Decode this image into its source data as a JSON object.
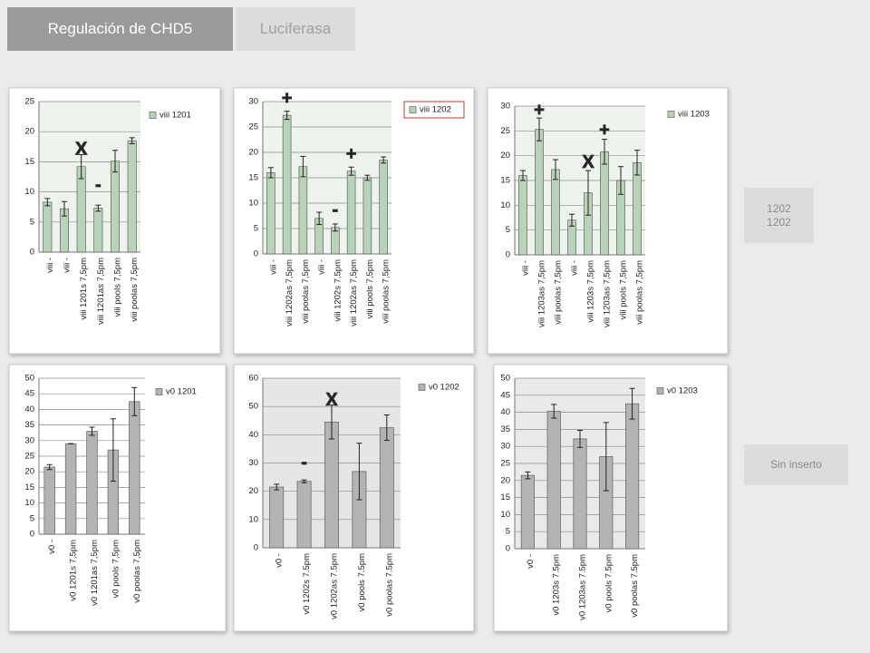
{
  "tabs": [
    "Regulación de CHD5",
    "Luciferasa"
  ],
  "side_boxes": [
    [
      "1202",
      "1202"
    ],
    [
      "Sin inserto"
    ]
  ],
  "chart_data": [
    {
      "type": "bar",
      "ylim": [
        0,
        25
      ],
      "yticks": [
        0,
        5,
        10,
        15,
        20,
        25
      ],
      "grid": true,
      "plot_bg": "#eef3ee",
      "legend_box": false,
      "categories": [
        "viii -",
        "viii -",
        "viii 1201s 7,5pm",
        "viii 1201as 7,5pm",
        "viii pools 7,5pm",
        "viii poolas 7,5pm"
      ],
      "series": [
        {
          "name": "viii 1201",
          "color": "#b9d3b9",
          "values": [
            8.3,
            7.2,
            14.2,
            7.3,
            15.1,
            18.5
          ],
          "errors": [
            0.6,
            1.2,
            2.0,
            0.5,
            1.8,
            0.5
          ]
        }
      ],
      "annotations": [
        {
          "text": "X",
          "color": "#e03010"
        },
        {
          "text": "-",
          "color": "#f2e400"
        }
      ]
    },
    {
      "type": "bar",
      "ylim": [
        0,
        30
      ],
      "yticks": [
        0,
        5,
        10,
        15,
        20,
        25,
        30
      ],
      "grid": true,
      "plot_bg": "#eef3ee",
      "legend_box": true,
      "categories": [
        "viii -",
        "viii 1202as 7,5pm",
        "viii poolas 7,5pm",
        "viii -",
        "viii 1202s 7,5pm",
        "viii 1202as 7,5pm",
        "viii pools 7,5pm",
        "viii poolas 7,5pm"
      ],
      "series": [
        {
          "name": "viii 1202",
          "color": "#b9d3b9",
          "values": [
            16,
            27.3,
            17.2,
            7,
            5.2,
            16.3,
            15,
            18.5
          ],
          "errors": [
            1,
            0.8,
            2,
            1.2,
            0.7,
            0.8,
            0.5,
            0.6
          ]
        }
      ],
      "annotations": [
        {
          "text": "+",
          "color": "#30a030"
        },
        {
          "text": "-",
          "color": "#f2e400"
        },
        {
          "text": "+",
          "color": "#30a030"
        }
      ]
    },
    {
      "type": "bar",
      "ylim": [
        0,
        30
      ],
      "yticks": [
        0,
        5,
        10,
        15,
        20,
        25,
        30
      ],
      "grid": true,
      "plot_bg": "#eef3ee",
      "legend_box": false,
      "categories": [
        "viii -",
        "viii 1203as 7,5pm",
        "viii poolas 7,5pm",
        "viii -",
        "viii 1203s 7,5pm",
        "viii 1203as 7,5pm",
        "viii pools 7,5pm",
        "viii poolas 7,5pm"
      ],
      "series": [
        {
          "name": "viii 1203",
          "color": "#b9d3b9",
          "values": [
            16,
            25.3,
            17.2,
            7,
            12.5,
            20.8,
            15,
            18.6
          ],
          "errors": [
            1,
            2.3,
            2,
            1.2,
            4.5,
            2.5,
            2.8,
            2.5
          ]
        }
      ],
      "annotations": [
        {
          "text": "+",
          "color": "#f2e400"
        },
        {
          "text": "X",
          "color": "#e03010"
        },
        {
          "text": "+",
          "color": "#f2e400"
        }
      ]
    },
    {
      "type": "bar",
      "ylim": [
        0,
        50
      ],
      "yticks": [
        0,
        5,
        10,
        15,
        20,
        25,
        30,
        35,
        40,
        45,
        50
      ],
      "grid": true,
      "plot_bg": "#ffffff",
      "legend_box": false,
      "categories": [
        "v0 -",
        "v0 1201s 7,5pm",
        "v0 1201as 7,5pm",
        "v0 pools 7,5pm",
        "v0 poolas 7,5pm"
      ],
      "series": [
        {
          "name": "v0 1201",
          "color": "#b3b3b3",
          "values": [
            21.5,
            29,
            33,
            27,
            42.5
          ],
          "errors": [
            0.8,
            0,
            1.3,
            10,
            4.5
          ]
        }
      ],
      "annotations": []
    },
    {
      "type": "bar",
      "ylim": [
        0,
        60
      ],
      "yticks": [
        0,
        10,
        20,
        30,
        40,
        50,
        60
      ],
      "grid": true,
      "plot_bg": "#e6e6e6",
      "legend_box": false,
      "categories": [
        "v0 -",
        "v0 1202s 7.5pm",
        "v0 1202as 7.5pm",
        "v0 pools 7.5pm",
        "v0 poolas 7.5pm"
      ],
      "series": [
        {
          "name": "v0 1202",
          "color": "#b3b3b3",
          "values": [
            21.5,
            23.5,
            44.5,
            27,
            42.5
          ],
          "errors": [
            1,
            0.5,
            6,
            10,
            4.5
          ]
        }
      ],
      "annotations": [
        {
          "text": "X",
          "color": "#e03010"
        },
        {
          "text": "-",
          "color": "#f2e400"
        }
      ]
    },
    {
      "type": "bar",
      "ylim": [
        0,
        50
      ],
      "yticks": [
        0,
        5,
        10,
        15,
        20,
        25,
        30,
        35,
        40,
        45,
        50
      ],
      "grid": true,
      "plot_bg": "#e9e9e9",
      "legend_box": false,
      "categories": [
        "v0 -",
        "v0 1203s 7.5pm",
        "v0 1203as 7.5pm",
        "v0 pools 7.5pm",
        "v0 poolas 7.5pm"
      ],
      "series": [
        {
          "name": "v0 1203",
          "color": "#b3b3b3",
          "values": [
            21.5,
            40.3,
            32.2,
            27,
            42.5
          ],
          "errors": [
            1,
            2,
            2.5,
            10,
            4.5
          ]
        }
      ],
      "annotations": []
    }
  ]
}
